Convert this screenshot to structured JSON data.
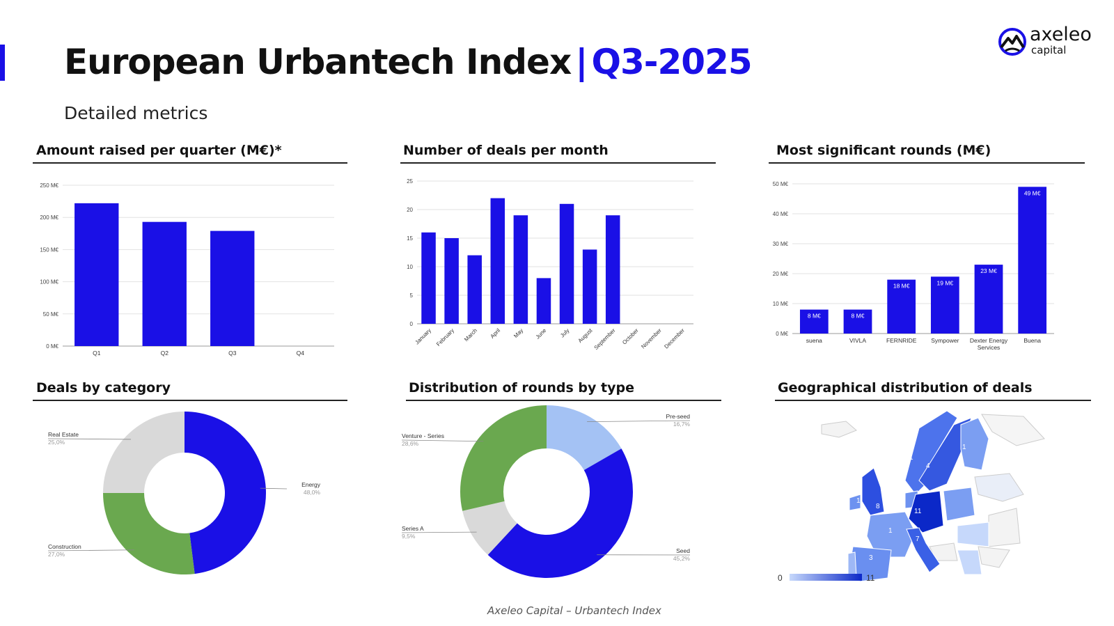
{
  "header": {
    "title": "European Urbantech Index",
    "separator": "|",
    "period": "Q3-2025",
    "subtitle": "Detailed metrics"
  },
  "logo": {
    "word": "axeleo",
    "sub": "capital"
  },
  "colors": {
    "accent": "#1a10e6",
    "green": "#6aa84f",
    "grey": "#d9d9d9",
    "light_blue": "#a4c2f4"
  },
  "panels": {
    "amount": "Amount raised per quarter (M€)*",
    "deals": "Number of deals per month",
    "rounds": "Most significant rounds (M€)",
    "category": "Deals by category",
    "types": "Distribution of rounds by type",
    "geo": "Geographical distribution of deals"
  },
  "chart_data": [
    {
      "id": "amount",
      "type": "bar",
      "categories": [
        "Q1",
        "Q2",
        "Q3",
        "Q4"
      ],
      "values": [
        222,
        193,
        179,
        null
      ],
      "ylim": [
        0,
        250
      ],
      "yticks": [
        0,
        50,
        100,
        150,
        200,
        250
      ],
      "ytick_labels": [
        "0 M€",
        "50 M€",
        "100 M€",
        "150 M€",
        "200 M€",
        "250 M€"
      ]
    },
    {
      "id": "deals",
      "type": "bar",
      "categories": [
        "January",
        "February",
        "March",
        "April",
        "May",
        "June",
        "July",
        "August",
        "September",
        "October",
        "November",
        "December"
      ],
      "values": [
        16,
        15,
        12,
        22,
        19,
        8,
        21,
        13,
        19,
        null,
        null,
        null
      ],
      "ylim": [
        0,
        25
      ],
      "yticks": [
        0,
        5,
        10,
        15,
        20,
        25
      ],
      "ytick_labels": [
        "0",
        "5",
        "10",
        "15",
        "20",
        "25"
      ]
    },
    {
      "id": "rounds",
      "type": "bar",
      "categories": [
        "suena",
        "VIVLA",
        "FERNRIDE",
        "Sympower",
        "Dexter Energy Services",
        "Buena"
      ],
      "values": [
        8,
        8,
        18,
        19,
        23,
        49
      ],
      "data_labels": [
        "8 M€",
        "8 M€",
        "18 M€",
        "19 M€",
        "23 M€",
        "49 M€"
      ],
      "ylim": [
        0,
        50
      ],
      "yticks": [
        0,
        10,
        20,
        30,
        40,
        50
      ],
      "ytick_labels": [
        "0 M€",
        "10 M€",
        "20 M€",
        "30 M€",
        "40 M€",
        "50 M€"
      ]
    },
    {
      "id": "category",
      "type": "pie",
      "slices": [
        {
          "label": "Energy",
          "value": 48.0,
          "pct": "48,0%",
          "color": "#1a10e6"
        },
        {
          "label": "Construction",
          "value": 27.0,
          "pct": "27,0%",
          "color": "#6aa84f"
        },
        {
          "label": "Real Estate",
          "value": 25.0,
          "pct": "25,0%",
          "color": "#d9d9d9"
        }
      ]
    },
    {
      "id": "types",
      "type": "pie",
      "slices": [
        {
          "label": "Pre-seed",
          "value": 16.7,
          "pct": "16,7%",
          "color": "#a4c2f4"
        },
        {
          "label": "Seed",
          "value": 45.2,
          "pct": "45,2%",
          "color": "#1a10e6"
        },
        {
          "label": "Series A",
          "value": 9.5,
          "pct": "9,5%",
          "color": "#d9d9d9"
        },
        {
          "label": "Venture - Series",
          "value": 28.6,
          "pct": "28,6%",
          "color": "#6aa84f"
        }
      ]
    },
    {
      "id": "geo",
      "type": "heatmap",
      "scale_min": "0",
      "scale_max": "11",
      "regions": [
        {
          "name": "Norway",
          "value": "1"
        },
        {
          "name": "Sweden",
          "value": "4"
        },
        {
          "name": "Finland",
          "value": "1"
        },
        {
          "name": "Netherlands",
          "value": "1"
        },
        {
          "name": "United Kingdom",
          "value": "8"
        },
        {
          "name": "Germany",
          "value": "11"
        },
        {
          "name": "Poland",
          "value": "1"
        },
        {
          "name": "France",
          "value": "1"
        },
        {
          "name": "Switzerland",
          "value": "7"
        },
        {
          "name": "Spain",
          "value": "3"
        }
      ]
    }
  ],
  "footer": "Axeleo Capital – Urbantech Index"
}
